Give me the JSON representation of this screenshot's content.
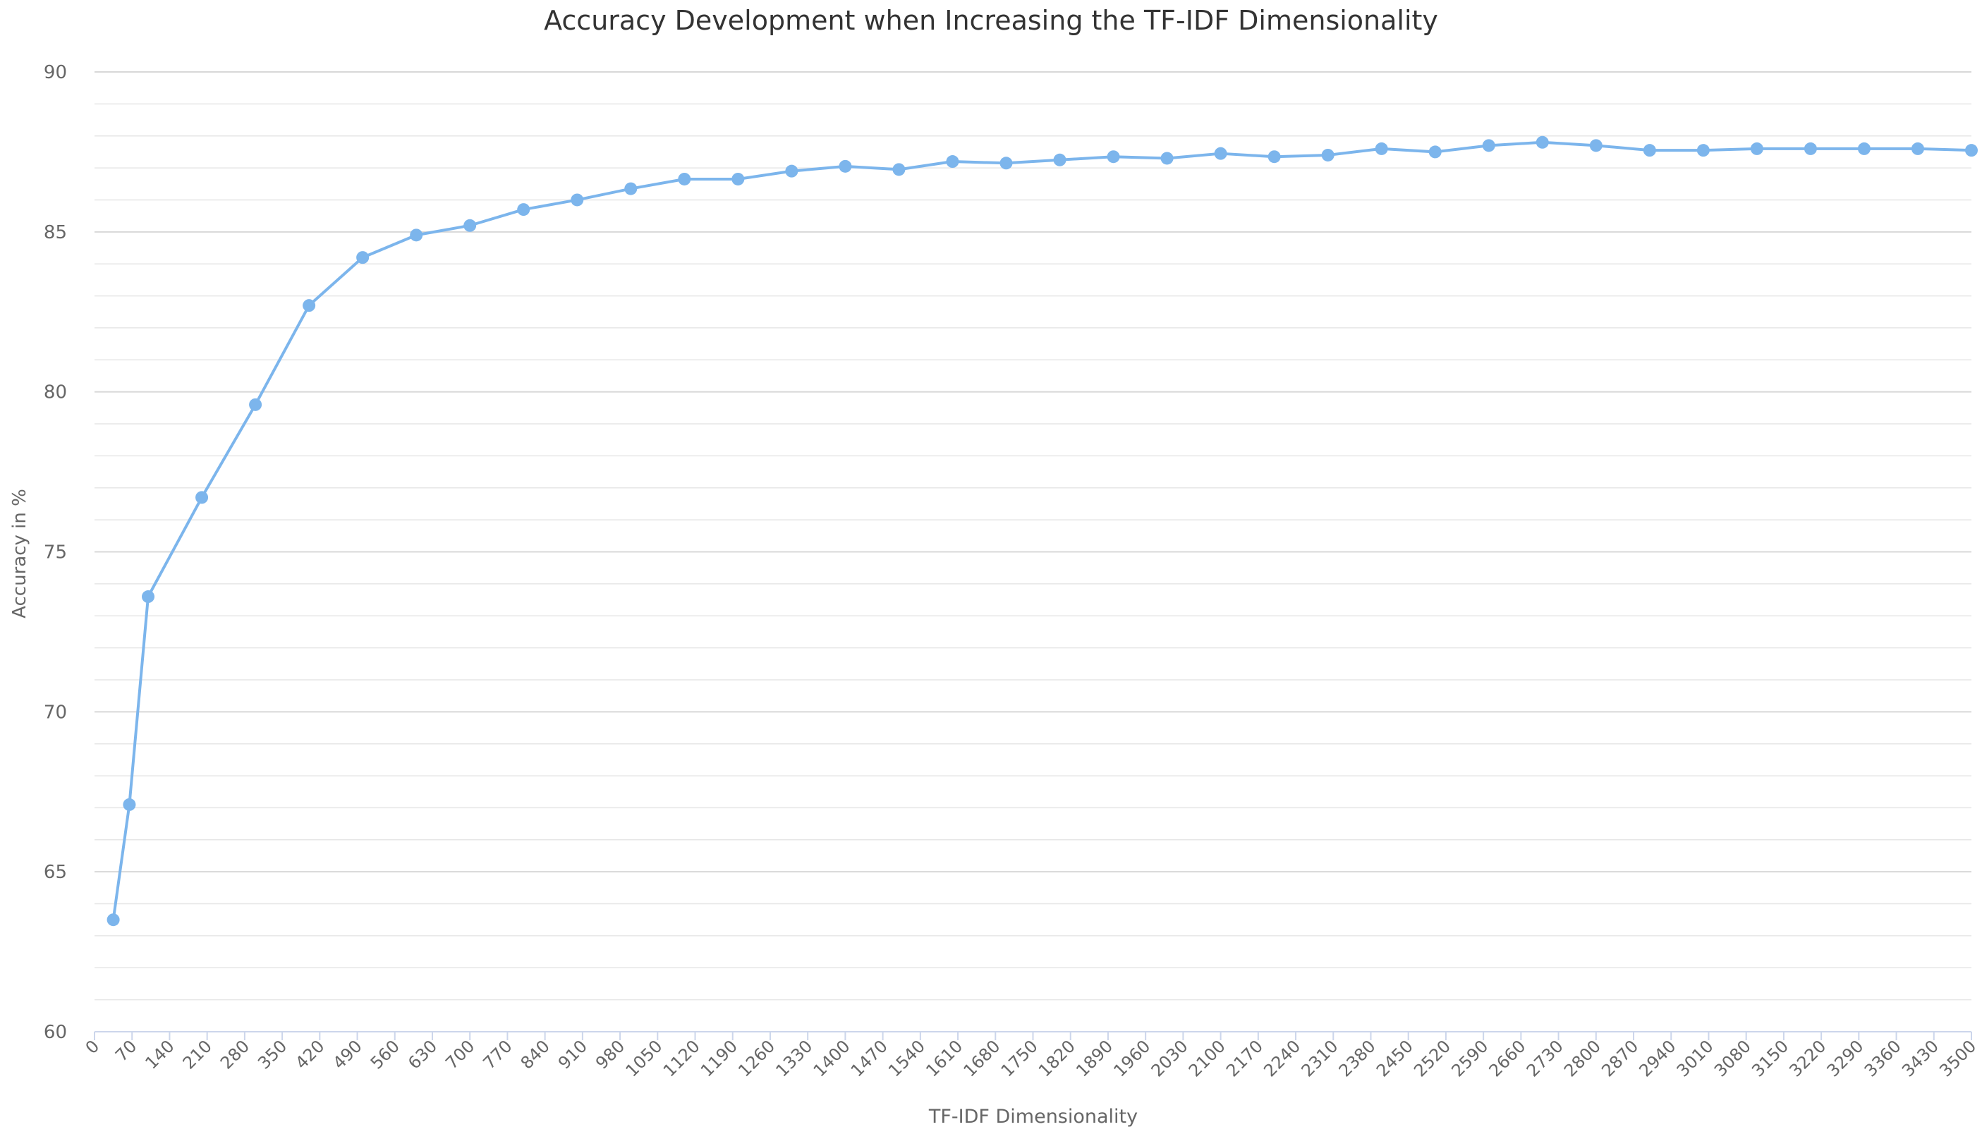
{
  "chart_data": {
    "type": "line",
    "title": "Accuracy Development when Increasing the TF-IDF Dimensionality",
    "xlabel": "TF-IDF Dimensionality",
    "ylabel": "Accuracy in %",
    "xlim": [
      0,
      3500
    ],
    "ylim": [
      60,
      90
    ],
    "x_ticks": [
      "0",
      "70",
      "140",
      "210",
      "280",
      "350",
      "420",
      "490",
      "560",
      "630",
      "700",
      "770",
      "840",
      "910",
      "980",
      "1050",
      "1120",
      "1190",
      "1260",
      "1330",
      "1400",
      "1470",
      "1540",
      "1610",
      "1680",
      "1750",
      "1820",
      "1890",
      "1960",
      "2030",
      "2100",
      "2170",
      "2240",
      "2310",
      "2380",
      "2450",
      "2520",
      "2590",
      "2660",
      "2730",
      "2800",
      "2870",
      "2940",
      "3010",
      "3080",
      "3150",
      "3220",
      "3290",
      "3360",
      "3430",
      "3500"
    ],
    "y_ticks": [
      "60",
      "65",
      "70",
      "75",
      "80",
      "85",
      "90"
    ],
    "y_minor_step": 1,
    "grid": true,
    "legend": "none",
    "line_color": "#7cb5ec",
    "series": [
      {
        "x": [
          35,
          65,
          100,
          200,
          300,
          400,
          500,
          600,
          700,
          800,
          900,
          1000,
          1100,
          1200,
          1300,
          1400,
          1500,
          1600,
          1700,
          1800,
          1900,
          2000,
          2100,
          2200,
          2300,
          2400,
          2500,
          2600,
          2700,
          2800,
          2900,
          3000,
          3100,
          3200,
          3300,
          3400,
          3500
        ],
        "y": [
          63.5,
          67.1,
          73.6,
          76.7,
          79.6,
          82.7,
          84.2,
          84.9,
          85.2,
          85.7,
          86.0,
          86.35,
          86.65,
          86.65,
          86.9,
          87.05,
          86.95,
          87.2,
          87.15,
          87.25,
          87.35,
          87.3,
          87.45,
          87.35,
          87.4,
          87.6,
          87.5,
          87.7,
          87.8,
          87.7,
          87.55,
          87.55,
          87.6,
          87.6,
          87.6,
          87.6,
          87.55
        ]
      }
    ]
  }
}
